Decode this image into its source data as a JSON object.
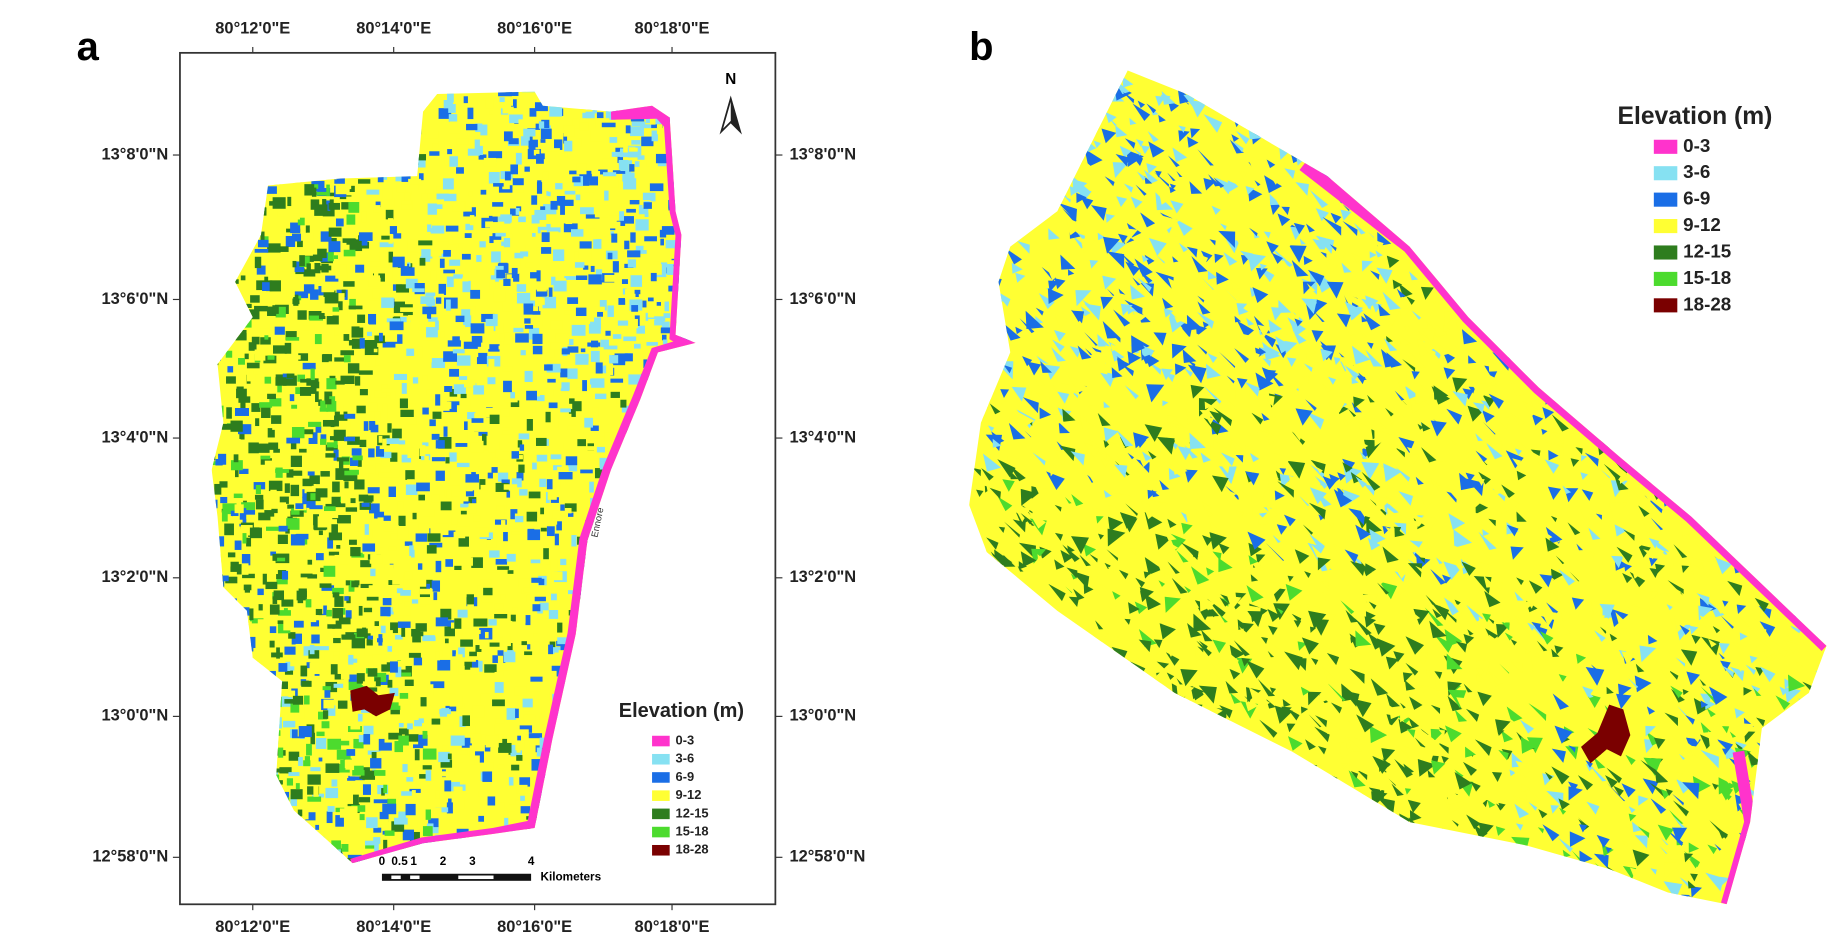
{
  "panels": [
    {
      "label": "a",
      "top_ticks": [
        "80°12'0\"E",
        "80°14'0\"E",
        "80°16'0\"E",
        "80°18'0\"E"
      ],
      "bottom_ticks": [
        "80°12'0\"E",
        "80°14'0\"E",
        "80°16'0\"E",
        "80°18'0\"E"
      ],
      "left_ticks": [
        "13°8'0\"N",
        "13°6'0\"N",
        "13°4'0\"N",
        "13°2'0\"N",
        "13°0'0\"N",
        "12°58'0\"N"
      ],
      "right_ticks": [
        "13°8'0\"N",
        "13°6'0\"N",
        "13°4'0\"N",
        "13°2'0\"N",
        "13°0'0\"N",
        "12°58'0\"N"
      ],
      "north": "N",
      "place_label": "Ennore",
      "legend": {
        "title": "Elevation (m)",
        "items": [
          {
            "label": "0-3",
            "color": "#ff33cc"
          },
          {
            "label": "3-6",
            "color": "#86e1f2"
          },
          {
            "label": "6-9",
            "color": "#1a6ee6"
          },
          {
            "label": "9-12",
            "color": "#ffff33"
          },
          {
            "label": "12-15",
            "color": "#2e7d1e"
          },
          {
            "label": "15-18",
            "color": "#4cdb2e"
          },
          {
            "label": "18-28",
            "color": "#7a0000"
          }
        ]
      },
      "scale_bar": {
        "ticks": [
          "0",
          "0.5",
          "1",
          "2",
          "3",
          "4"
        ],
        "unit": "Kilometers"
      }
    },
    {
      "label": "b",
      "legend": {
        "title": "Elevation (m)",
        "items": [
          {
            "label": "0-3",
            "color": "#ff33cc"
          },
          {
            "label": "3-6",
            "color": "#86e1f2"
          },
          {
            "label": "6-9",
            "color": "#1a6ee6"
          },
          {
            "label": "9-12",
            "color": "#ffff33"
          },
          {
            "label": "12-15",
            "color": "#2e7d1e"
          },
          {
            "label": "15-18",
            "color": "#4cdb2e"
          },
          {
            "label": "18-28",
            "color": "#7a0000"
          }
        ]
      }
    }
  ]
}
